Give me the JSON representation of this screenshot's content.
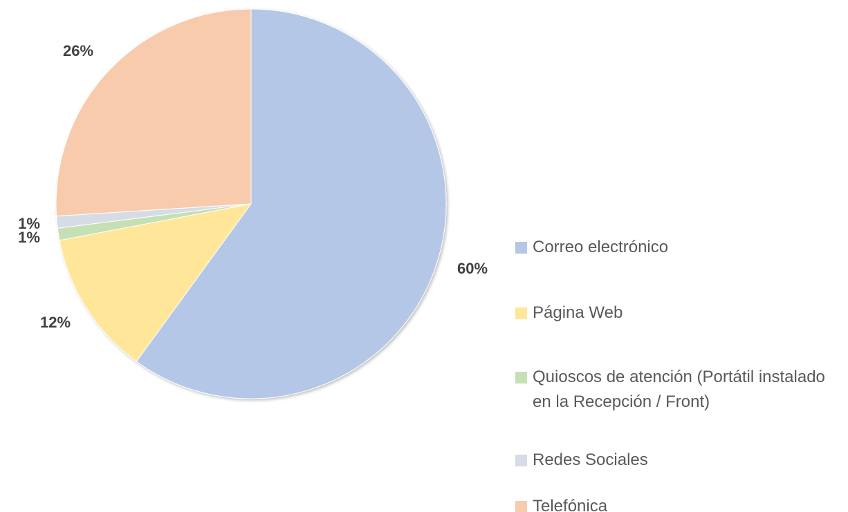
{
  "chart_data": {
    "type": "pie",
    "categories": [
      "Correo electrónico",
      "Página Web",
      "Quioscos de atención (Portátil instalado en la Recepción / Front)",
      "Redes Sociales",
      "Telefónica"
    ],
    "values": [
      60,
      12,
      1,
      1,
      26
    ],
    "value_labels": [
      "60%",
      "12%",
      "1%",
      "1%",
      "26%"
    ],
    "colors": [
      "#b4c7e7",
      "#ffe699",
      "#c5e0b4",
      "#d6dce5",
      "#f8cbad"
    ],
    "legend": "right"
  }
}
